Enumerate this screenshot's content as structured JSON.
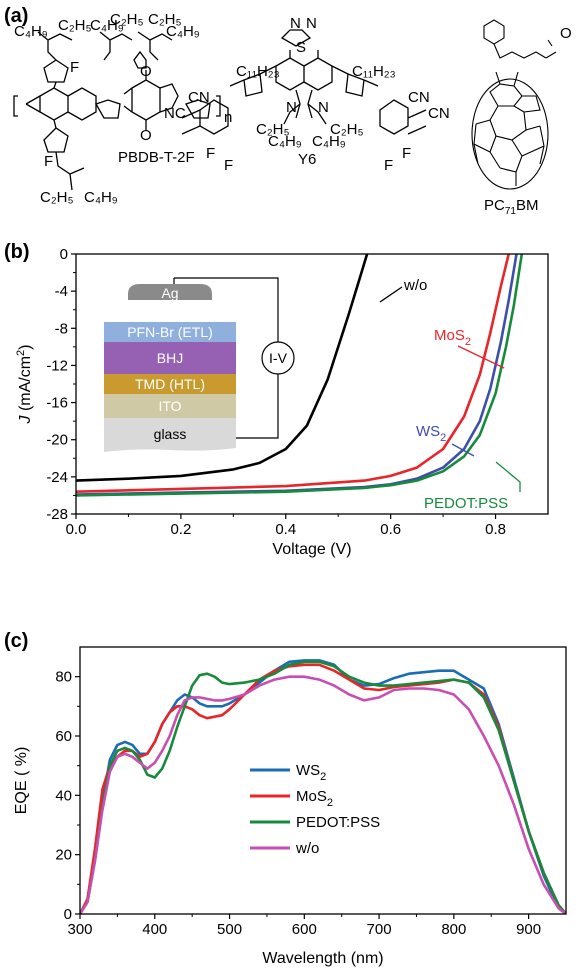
{
  "panels": {
    "a": "(a)",
    "b": "(b)",
    "c": "(c)"
  },
  "molecules": {
    "polymer": "PBDB-T-2F",
    "acceptor": "Y6",
    "fullerene_main": "PC",
    "fullerene_sub": "71",
    "fullerene_tail": "BM",
    "groups": {
      "c2h5": "C₂H₅",
      "c4h9": "C₄H₉",
      "c11h23": "C₁₁H₂₃",
      "cn": "CN",
      "n": "N",
      "s": "S",
      "o": "O",
      "f": "F",
      "nc": "NC",
      "repeat": "n"
    }
  },
  "device": {
    "layers": [
      "Ag",
      "PFN-Br (ETL)",
      "BHJ",
      "TMD (HTL)",
      "ITO",
      "glass"
    ],
    "meter": "I-V",
    "colors": {
      "Ag": "#8a8a8a",
      "PFN-Br (ETL)": "#8fb0dd",
      "BHJ": "#9660b3",
      "TMD (HTL)": "#c99a2e",
      "ITO": "#cfcaa5",
      "glass": "#d9d9d9"
    }
  },
  "chart_data": [
    {
      "panel": "b",
      "type": "line",
      "xlabel": "Voltage (V)",
      "ylabel_italic": "J",
      "ylabel_rest": " (mA/cm",
      "ylabel_sup": "2",
      "ylabel_end": ")",
      "xlim": [
        0.0,
        0.9
      ],
      "ylim": [
        -28,
        0
      ],
      "xticks": [
        0.0,
        0.2,
        0.4,
        0.6,
        0.8
      ],
      "xtick_labels": [
        "0.0",
        "0.2",
        "0.4",
        "0.6",
        "0.8"
      ],
      "yticks": [
        0,
        -4,
        -8,
        -12,
        -16,
        -20,
        -24,
        -28
      ],
      "ytick_labels": [
        "0",
        "-4",
        "-8",
        "-12",
        "-16",
        "-20",
        "-24",
        "-28"
      ],
      "series": [
        {
          "name": "w/o",
          "color": "#000000",
          "x": [
            0,
            0.1,
            0.2,
            0.3,
            0.35,
            0.4,
            0.44,
            0.48,
            0.5,
            0.52,
            0.54,
            0.555
          ],
          "y": [
            -24.4,
            -24.2,
            -23.9,
            -23.2,
            -22.5,
            -21.0,
            -18.5,
            -13.5,
            -10.0,
            -6.5,
            -2.8,
            0
          ]
        },
        {
          "name": "MoS",
          "sub": "2",
          "color": "#e8262a",
          "x": [
            0,
            0.2,
            0.4,
            0.55,
            0.6,
            0.65,
            0.7,
            0.74,
            0.77,
            0.79,
            0.81,
            0.825
          ],
          "y": [
            -25.6,
            -25.3,
            -25.0,
            -24.4,
            -23.9,
            -23.0,
            -21.0,
            -17.5,
            -13.0,
            -8.5,
            -3.5,
            0
          ]
        },
        {
          "name": "WS",
          "sub": "2",
          "color": "#3d4fa8",
          "x": [
            0,
            0.2,
            0.4,
            0.55,
            0.6,
            0.65,
            0.7,
            0.74,
            0.77,
            0.79,
            0.81,
            0.825,
            0.84
          ],
          "y": [
            -25.9,
            -25.7,
            -25.5,
            -25.1,
            -24.8,
            -24.2,
            -23.0,
            -21.0,
            -18.0,
            -14.5,
            -9.5,
            -5.0,
            0
          ]
        },
        {
          "name": "PEDOT:PSS",
          "color": "#178a3c",
          "x": [
            0,
            0.2,
            0.4,
            0.55,
            0.6,
            0.65,
            0.7,
            0.74,
            0.77,
            0.8,
            0.82,
            0.835,
            0.85
          ],
          "y": [
            -26.0,
            -25.8,
            -25.6,
            -25.2,
            -24.9,
            -24.4,
            -23.4,
            -21.8,
            -19.5,
            -15.0,
            -10.0,
            -5.5,
            0
          ]
        }
      ]
    },
    {
      "panel": "c",
      "type": "line",
      "xlabel": "Wavelength (nm)",
      "ylabel": "EQE ( %)",
      "xlim": [
        300,
        950
      ],
      "ylim": [
        0,
        90
      ],
      "xticks": [
        300,
        400,
        500,
        600,
        700,
        800,
        900
      ],
      "xtick_labels": [
        "300",
        "400",
        "500",
        "600",
        "700",
        "800",
        "900"
      ],
      "yticks": [
        0,
        20,
        40,
        60,
        80
      ],
      "ytick_labels": [
        "0",
        "20",
        "40",
        "60",
        "80"
      ],
      "legend_position": "center-left",
      "series": [
        {
          "name": "WS",
          "sub": "2",
          "color": "#1a6db3",
          "x": [
            300,
            310,
            320,
            330,
            340,
            350,
            360,
            370,
            380,
            390,
            400,
            410,
            420,
            430,
            440,
            450,
            460,
            470,
            480,
            490,
            500,
            520,
            540,
            560,
            580,
            600,
            620,
            640,
            660,
            680,
            700,
            720,
            740,
            760,
            780,
            800,
            820,
            840,
            860,
            880,
            900,
            920,
            940,
            950
          ],
          "y": [
            0,
            5,
            20,
            38,
            52,
            57,
            58,
            57,
            54,
            54,
            58,
            64,
            68,
            72,
            74,
            73,
            71,
            70,
            70,
            70,
            71,
            74,
            78,
            82,
            85,
            85.5,
            85.5,
            84,
            79,
            77,
            77.5,
            79.5,
            81,
            81.5,
            82,
            82,
            79,
            76,
            64,
            46,
            28,
            13,
            2,
            0
          ]
        },
        {
          "name": "MoS",
          "sub": "2",
          "color": "#e8262a",
          "x": [
            300,
            310,
            320,
            330,
            340,
            350,
            360,
            370,
            380,
            390,
            400,
            410,
            420,
            430,
            440,
            450,
            460,
            470,
            480,
            490,
            500,
            520,
            540,
            560,
            580,
            600,
            620,
            640,
            660,
            680,
            700,
            720,
            740,
            760,
            780,
            800,
            820,
            840,
            860,
            880,
            900,
            920,
            940,
            950
          ],
          "y": [
            0,
            5,
            22,
            42,
            50,
            53,
            55,
            55,
            53,
            54,
            58,
            64,
            68,
            70,
            70,
            69,
            67,
            66,
            66.5,
            67,
            69,
            74,
            79,
            82,
            83.5,
            84,
            84,
            82,
            79,
            76,
            75.5,
            76.5,
            77,
            77.5,
            78,
            79,
            78,
            74,
            63,
            45,
            28,
            14,
            3,
            0
          ]
        },
        {
          "name": "PEDOT:PSS",
          "color": "#178a3c",
          "x": [
            300,
            310,
            320,
            330,
            340,
            350,
            360,
            370,
            380,
            390,
            400,
            410,
            420,
            430,
            440,
            450,
            460,
            470,
            480,
            490,
            500,
            520,
            540,
            560,
            580,
            600,
            620,
            640,
            660,
            680,
            700,
            720,
            740,
            760,
            780,
            800,
            820,
            840,
            860,
            880,
            900,
            920,
            940,
            950
          ],
          "y": [
            0,
            4,
            18,
            36,
            50,
            55,
            56,
            55,
            52,
            47,
            46,
            49,
            55,
            63,
            70,
            77,
            80.5,
            81,
            80,
            78,
            77.5,
            78,
            79,
            81,
            84,
            85,
            85,
            83.5,
            80,
            78,
            77,
            77,
            77.5,
            78,
            78.5,
            79,
            78,
            73,
            62,
            45,
            28,
            14,
            3,
            0
          ]
        },
        {
          "name": "w/o",
          "color": "#c84fb1",
          "x": [
            300,
            310,
            320,
            330,
            340,
            350,
            360,
            370,
            380,
            390,
            400,
            410,
            420,
            430,
            440,
            450,
            460,
            470,
            480,
            490,
            500,
            520,
            540,
            560,
            580,
            600,
            620,
            640,
            660,
            680,
            700,
            720,
            740,
            760,
            780,
            800,
            820,
            840,
            860,
            880,
            900,
            920,
            940,
            950
          ],
          "y": [
            0,
            4,
            18,
            35,
            48,
            53,
            54,
            53,
            51,
            49,
            51,
            55,
            60,
            67,
            72,
            73,
            73,
            72.5,
            72,
            72,
            72.5,
            74,
            77,
            79,
            80,
            80,
            79,
            77,
            74,
            72,
            73,
            75.5,
            76,
            76,
            75.5,
            74,
            69,
            60,
            50,
            37,
            22,
            10,
            2,
            0
          ]
        }
      ]
    }
  ]
}
